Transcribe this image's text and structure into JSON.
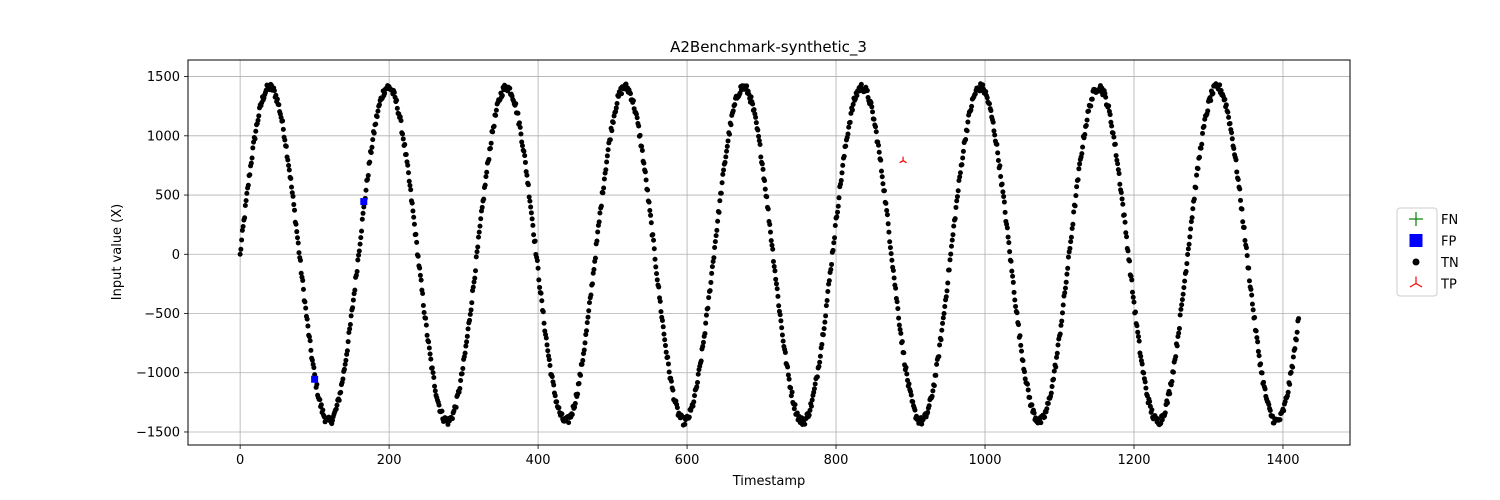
{
  "chart_data": {
    "type": "scatter",
    "title": "A2Benchmark-synthetic_3",
    "xlabel": "Timestamp",
    "ylabel": "Input value (X)",
    "xlim": [
      -70,
      1490
    ],
    "ylim": [
      -1610,
      1640
    ],
    "xticks": [
      0,
      200,
      400,
      600,
      800,
      1000,
      1200,
      1400
    ],
    "yticks": [
      -1500,
      -1000,
      -500,
      0,
      500,
      1000,
      1500
    ],
    "xtick_labels": [
      "0",
      "200",
      "400",
      "600",
      "800",
      "1000",
      "1200",
      "1400"
    ],
    "ytick_labels": [
      "−1500",
      "−1000",
      "−500",
      "0",
      "500",
      "1000",
      "1500"
    ],
    "grid": true,
    "legend_position": "outside-right",
    "signal": {
      "description": "sinusoid",
      "n_points": 1422,
      "x_start": 0,
      "x_end": 1421,
      "amplitude": 1410,
      "period": 159
    },
    "series": [
      {
        "name": "FN",
        "marker": "plus",
        "color": "#008000",
        "points": []
      },
      {
        "name": "FP",
        "marker": "square",
        "color": "#0000ff",
        "points": [
          [
            100,
            -1055
          ],
          [
            166,
            445
          ]
        ]
      },
      {
        "name": "TN",
        "marker": "circle",
        "color": "#000000",
        "points": "signal"
      },
      {
        "name": "TP",
        "marker": "tri_up",
        "color": "#ff0000",
        "points": [
          [
            890,
            790
          ]
        ]
      }
    ]
  }
}
